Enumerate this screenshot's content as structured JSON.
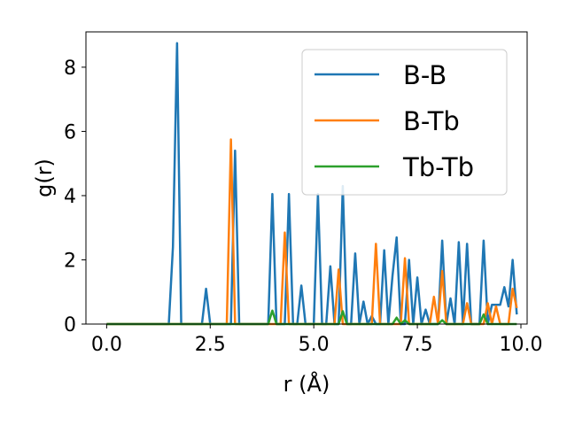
{
  "chart_data": {
    "type": "line",
    "title": "",
    "xlabel": "r (Å)",
    "ylabel": "g(r)",
    "xlim": [
      -0.5,
      10.15
    ],
    "ylim": [
      0,
      9.1
    ],
    "xticks": [
      0.0,
      2.5,
      5.0,
      7.5,
      10.0
    ],
    "xtick_labels": [
      "0.0",
      "2.5",
      "5.0",
      "7.5",
      "10.0"
    ],
    "yticks": [
      0,
      2,
      4,
      6,
      8
    ],
    "ytick_labels": [
      "0",
      "2",
      "4",
      "6",
      "8"
    ],
    "grid": false,
    "legend_position": "top-right",
    "series": [
      {
        "name": "B-B",
        "color": "#1f77b4",
        "x": [
          0.0,
          1.5,
          1.6,
          1.7,
          1.8,
          2.3,
          2.4,
          2.5,
          3.0,
          3.1,
          3.2,
          3.9,
          4.0,
          4.1,
          4.3,
          4.4,
          4.5,
          4.6,
          4.7,
          4.8,
          5.0,
          5.1,
          5.2,
          5.3,
          5.4,
          5.5,
          5.6,
          5.7,
          5.8,
          5.9,
          6.0,
          6.1,
          6.2,
          6.3,
          6.4,
          6.5,
          6.6,
          6.7,
          6.8,
          6.9,
          7.0,
          7.1,
          7.2,
          7.3,
          7.4,
          7.5,
          7.6,
          7.7,
          7.8,
          7.9,
          8.0,
          8.1,
          8.2,
          8.3,
          8.4,
          8.5,
          8.6,
          8.7,
          8.8,
          8.9,
          9.0,
          9.1,
          9.2,
          9.3,
          9.4,
          9.5,
          9.6,
          9.7,
          9.8,
          9.9
        ],
        "y": [
          0,
          0,
          2.4,
          8.75,
          0,
          0,
          1.1,
          0,
          0,
          5.4,
          0,
          0,
          4.05,
          0,
          0,
          4.05,
          0,
          0,
          1.2,
          0,
          0,
          4.05,
          0,
          0,
          1.8,
          0,
          0,
          4.3,
          0,
          0,
          2.2,
          0,
          0.7,
          0,
          0.25,
          0,
          0,
          2.3,
          0,
          1.5,
          2.7,
          0,
          0,
          2.0,
          0,
          1.45,
          0,
          0.45,
          0,
          0,
          0,
          2.6,
          0,
          0.8,
          0,
          2.55,
          0,
          2.5,
          0,
          0,
          0,
          2.6,
          0,
          0.6,
          0.6,
          0.6,
          1.15,
          0.55,
          2.0,
          0.3
        ]
      },
      {
        "name": "B-Tb",
        "color": "#ff7f0e",
        "x": [
          0.0,
          2.9,
          3.0,
          3.1,
          4.2,
          4.3,
          4.4,
          5.5,
          5.6,
          5.7,
          6.4,
          6.5,
          6.6,
          7.1,
          7.2,
          7.3,
          7.8,
          7.9,
          8.0,
          8.1,
          8.2,
          8.3,
          8.6,
          8.7,
          8.8,
          9.1,
          9.2,
          9.3,
          9.4,
          9.5,
          9.7,
          9.8,
          9.9
        ],
        "y": [
          0,
          0,
          5.75,
          0,
          0,
          2.85,
          0,
          0,
          1.7,
          0,
          0,
          2.5,
          0,
          0,
          2.05,
          0,
          0,
          0.85,
          0,
          1.65,
          0,
          0,
          0,
          0.65,
          0,
          0,
          0.65,
          0,
          0.55,
          0,
          0,
          1.1,
          0.5
        ]
      },
      {
        "name": "Tb-Tb",
        "color": "#2ca02c",
        "x": [
          0.0,
          3.9,
          4.0,
          4.1,
          5.6,
          5.7,
          5.8,
          6.9,
          7.0,
          7.1,
          7.2,
          7.3,
          8.0,
          8.1,
          8.2,
          9.0,
          9.1,
          9.2,
          9.9
        ],
        "y": [
          0,
          0,
          0.42,
          0,
          0,
          0.4,
          0,
          0,
          0.2,
          0,
          0.12,
          0,
          0,
          0.12,
          0,
          0,
          0.3,
          0,
          0
        ]
      }
    ]
  }
}
